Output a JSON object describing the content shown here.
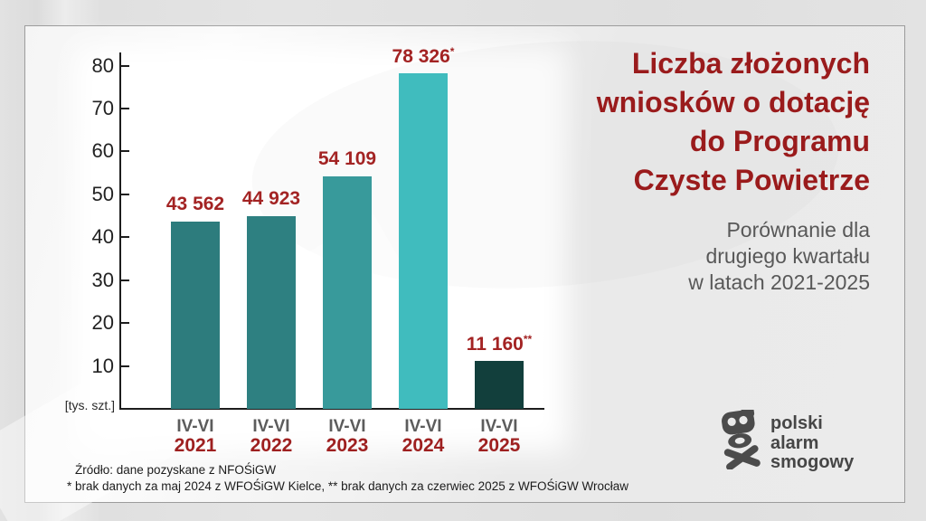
{
  "title": {
    "text": "Liczba złożonych\nwniosków o dotację\ndo Programu\nCzyste Powietrze",
    "color": "#9a1b1c"
  },
  "subtitle": {
    "text": "Porównanie dla\ndrugiego kwartału\nw latach 2021-2025"
  },
  "footer": {
    "line1": "Źródło: dane pozyskane z NFOŚiGW",
    "line2": "* brak danych za maj 2024 z WFOŚiGW Kielce, ** brak danych za czerwiec 2025 z WFOŚiGW Wrocław"
  },
  "logo": {
    "text": "polski\nalarm\nsmogowy",
    "icon": "skull-gas-mask-crossbones",
    "color": "#4b4b4b"
  },
  "chart_data": {
    "type": "bar",
    "title": "Liczba złożonych wniosków o dotację do Programu Czyste Powietrze",
    "subtitle": "Porównanie dla drugiego kwartału w latach 2021-2025",
    "unit_label": "[tys. szt.]",
    "xlabel": "",
    "ylabel": "tys. szt.",
    "ylim": [
      0,
      80
    ],
    "yticks": [
      10,
      20,
      30,
      40,
      50,
      60,
      70,
      80
    ],
    "grid": false,
    "legend": "none",
    "categories": [
      "IV-VI 2021",
      "IV-VI 2022",
      "IV-VI 2023",
      "IV-VI 2024",
      "IV-VI 2025"
    ],
    "values": [
      43562,
      44923,
      54109,
      78326,
      11160
    ],
    "bars": [
      {
        "period": "IV-VI",
        "year": "2021",
        "value": 43562,
        "label": "43 562",
        "sup": "",
        "color": "#2d7c7d"
      },
      {
        "period": "IV-VI",
        "year": "2022",
        "value": 44923,
        "label": "44 923",
        "sup": "",
        "color": "#2e8081"
      },
      {
        "period": "IV-VI",
        "year": "2023",
        "value": 54109,
        "label": "54 109",
        "sup": "",
        "color": "#389a9b"
      },
      {
        "period": "IV-VI",
        "year": "2024",
        "value": 78326,
        "label": "78 326",
        "sup": "*",
        "color": "#40bcbe"
      },
      {
        "period": "IV-VI",
        "year": "2025",
        "value": 11160,
        "label": "11 160",
        "sup": "**",
        "color": "#123f3c"
      }
    ],
    "value_color": "#a32323",
    "year_color": "#9e2020",
    "period_color": "#5c5c5c",
    "axis_color": "#1d1d1d"
  }
}
